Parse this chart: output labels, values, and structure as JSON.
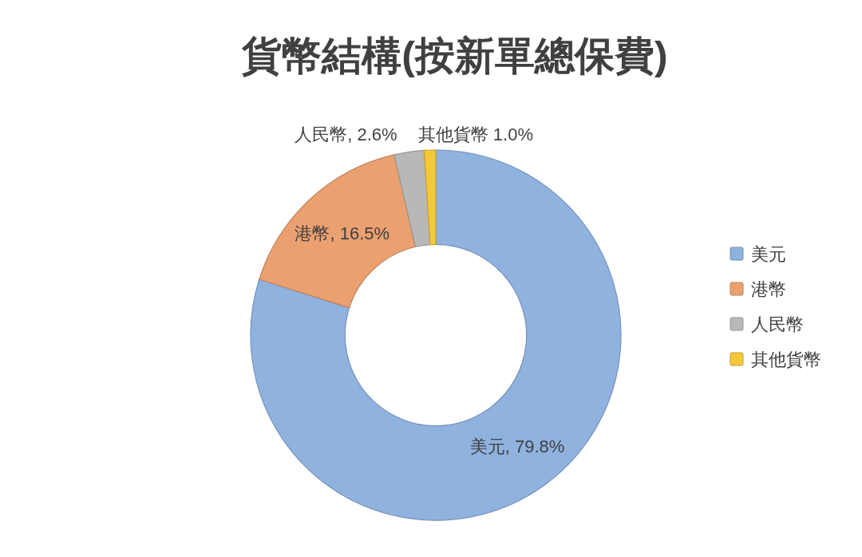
{
  "chart_data": {
    "type": "donut",
    "title": "貨幣結構(按新單總保費)",
    "categories": [
      "美元",
      "港幣",
      "人民幣",
      "其他貨幣"
    ],
    "values": [
      79.8,
      16.5,
      2.6,
      1.0
    ],
    "colors": [
      "#8fb2df",
      "#eba070",
      "#b8b8b8",
      "#f4c838"
    ],
    "value_labels": [
      "美元, 79.8%",
      "港幣, 16.5%",
      "人民幣, 2.6%",
      "其他貨幣 1.0%"
    ],
    "legend": "right"
  }
}
